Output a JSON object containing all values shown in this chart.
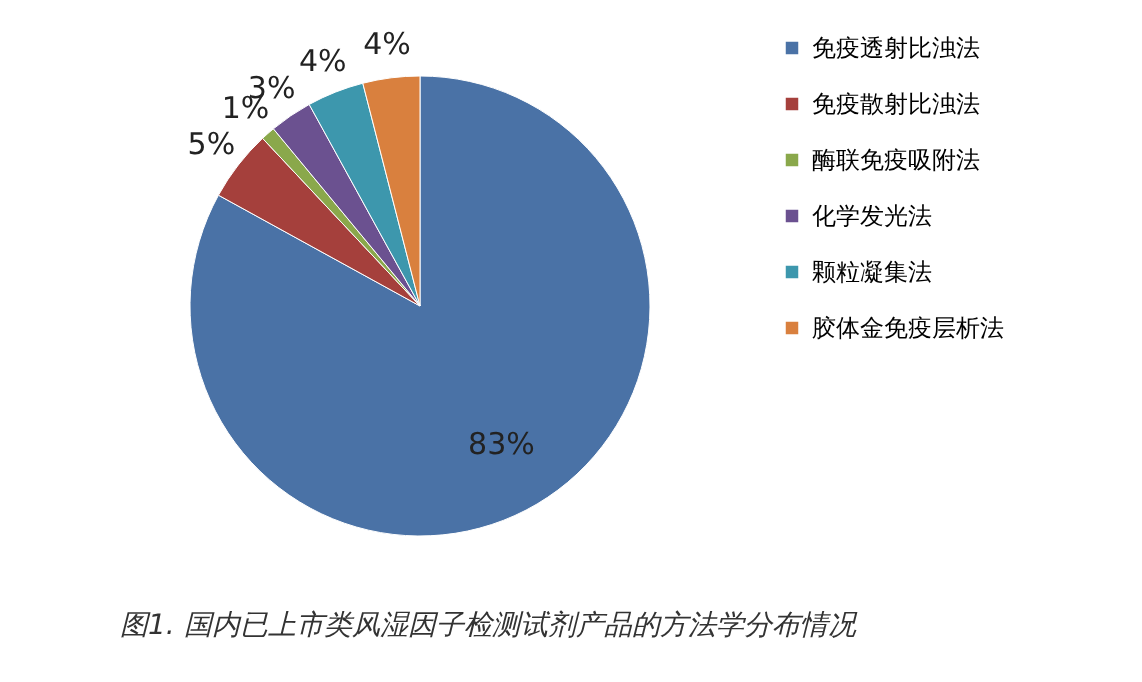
{
  "chart_data": {
    "type": "pie",
    "categories": [
      "免疫透射比浊法",
      "免疫散射比浊法",
      "酶联免疫吸附法",
      "化学发光法",
      "颗粒凝集法",
      "胶体金免疫层析法"
    ],
    "values": [
      83,
      5,
      1,
      3,
      4,
      4
    ],
    "colors": [
      "#4a72a6",
      "#a5403c",
      "#8aa84b",
      "#6b5190",
      "#3d97ad",
      "#d9803e"
    ],
    "value_labels": [
      "83%",
      "5%",
      "1%",
      "3%",
      "4%",
      "4%"
    ],
    "legend": "right",
    "annotations": [
      "图1. 国内已上市类风湿因子检测试剂产品的方法学分布情况"
    ]
  }
}
